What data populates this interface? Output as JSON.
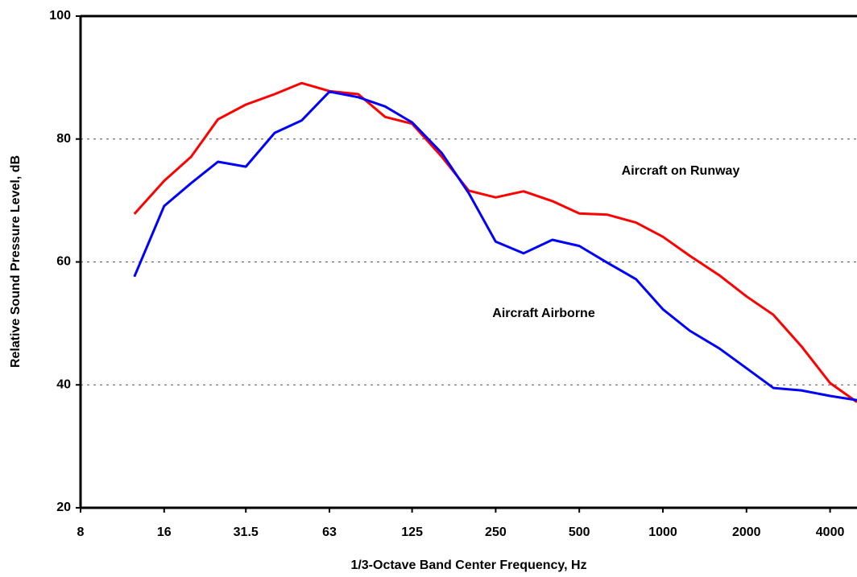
{
  "chart_data": {
    "type": "line",
    "xlabel": "1/3-Octave Band Center Frequency, Hz",
    "ylabel": "Relative Sound Pressure Level, dB",
    "x": [
      12.5,
      16,
      20,
      25,
      31.5,
      40,
      50,
      63,
      80,
      100,
      125,
      160,
      200,
      250,
      315,
      400,
      500,
      630,
      800,
      1000,
      1250,
      1600,
      2000,
      2500,
      3150,
      4000,
      5000
    ],
    "xscale": "log",
    "series": [
      {
        "name": "Aircraft on Runway",
        "color": "#ff0000",
        "values": [
          67.8,
          73.2,
          77.1,
          83.2,
          85.6,
          87.3,
          89.1,
          87.8,
          87.3,
          83.6,
          82.5,
          77.1,
          71.6,
          70.5,
          71.5,
          69.9,
          67.9,
          67.7,
          66.4,
          64.1,
          61,
          57.8,
          54.4,
          51.4,
          46.3,
          40.3,
          37.2
        ]
      },
      {
        "name": "Aircraft Airborne",
        "color": "#0000ff",
        "values": [
          57.6,
          69.1,
          72.8,
          76.3,
          75.5,
          81,
          83,
          87.7,
          86.8,
          85.3,
          82.7,
          77.7,
          71.2,
          63.3,
          61.4,
          63.6,
          62.6,
          59.9,
          57.2,
          52.3,
          48.8,
          45.9,
          42.7,
          39.5,
          39.1,
          38.2,
          37.5
        ]
      }
    ],
    "xlim": [
      8,
      5000
    ],
    "xticks": [
      8,
      16,
      31.5,
      63,
      125,
      250,
      500,
      1000,
      2000,
      4000
    ],
    "ylim": [
      20,
      100
    ],
    "yticks": [
      20,
      40,
      60,
      80,
      100
    ],
    "grid": true
  }
}
